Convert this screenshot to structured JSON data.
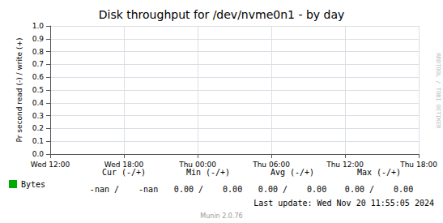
{
  "chart_data": {
    "type": "line",
    "title": "Disk throughput for /dev/nvme0n1 - by day",
    "y_label": "Pr second read (-) / write (+)",
    "categories": [
      "Wed 12:00",
      "Wed 18:00",
      "Thu 00:00",
      "Thu 06:00",
      "Thu 12:00",
      "Thu 18:00"
    ],
    "series": [
      {
        "name": "Bytes",
        "color": "#00aa00",
        "values": [
          null,
          null,
          null,
          null,
          null,
          null
        ]
      }
    ],
    "ylim": [
      0.0,
      1.0
    ],
    "yticks": [
      {
        "value": 0.0,
        "label": "0.0"
      },
      0.1,
      0.2,
      0.3,
      0.4,
      0.5,
      0.6,
      0.7,
      0.8,
      0.9,
      {
        "value": 1.0,
        "label": "1.0"
      }
    ],
    "grid": true,
    "legend": "bottom left",
    "annotations": [
      "RRDTOOL / TOBI OETIKER",
      "Cur (-/+)",
      "Min (-/+)",
      "Avg (-/+)",
      "Max (-/+)",
      "-nan /    -nan",
      "0.00 /    0.00",
      "0.00 /    0.00",
      "0.00 /    0.00",
      "Last update: Wed Nov 20 11:55:05 2024",
      "Munin 2.0.76"
    ]
  }
}
